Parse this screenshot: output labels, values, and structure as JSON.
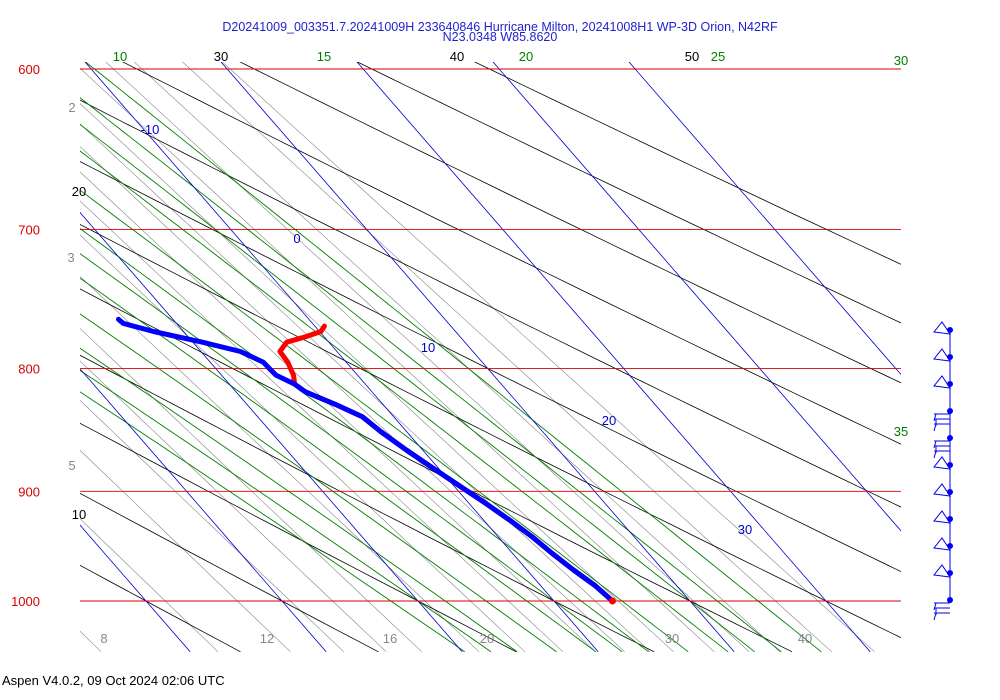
{
  "header": {
    "title_line1": "D20241009_003351.7.20241009H 233640846 Hurricane Milton, 20241008H1 WP-3D Orion, N42RF",
    "title_line2": "N23.0348 W85.8620"
  },
  "footer": {
    "version_text": "Aspen V4.0.2, 09 Oct 2024  02:06 UTC"
  },
  "colors": {
    "isobar": "#d90000",
    "isotherm": "#0000cc",
    "dry_adiabat": "#000000",
    "moist_adiabat": "#008000",
    "mixing_ratio": "#888888",
    "temperature": "#ff0000",
    "dewpoint": "#0000ff",
    "wind_barb": "#0000ee"
  },
  "chart_data": {
    "type": "line",
    "subtype": "skew-t log-p diagram",
    "pressure_range_hPa": [
      1050,
      600
    ],
    "pressure_labels": [
      {
        "value": 600,
        "text": "600"
      },
      {
        "value": 700,
        "text": "700"
      },
      {
        "value": 800,
        "text": "800"
      },
      {
        "value": 900,
        "text": "900"
      },
      {
        "value": 1000,
        "text": "1000"
      }
    ],
    "isotherm_labels": [
      "-10",
      "0",
      "10",
      "20",
      "30"
    ],
    "bottom_axis_labels": [
      "8",
      "12",
      "16",
      "20",
      "30",
      "40"
    ],
    "dry_adiabat_labels": [
      "10",
      "20",
      "30",
      "40",
      "50"
    ],
    "moist_adiabat_labels": [
      "10",
      "15",
      "20",
      "25",
      "30",
      "35"
    ],
    "mixing_ratio_labels": [
      "2",
      "3",
      "5"
    ],
    "series": [
      {
        "name": "",
        "kind": "temperature",
        "points": [
          {
            "p": 1000,
            "t": 24.3
          },
          {
            "p": 985,
            "t": 24.0
          },
          {
            "p": 970,
            "t": 23.4
          },
          {
            "p": 955,
            "t": 22.9
          },
          {
            "p": 940,
            "t": 22.5
          },
          {
            "p": 925,
            "t": 21.9
          },
          {
            "p": 910,
            "t": 21.2
          },
          {
            "p": 895,
            "t": 20.4
          },
          {
            "p": 880,
            "t": 19.6
          },
          {
            "p": 865,
            "t": 18.8
          },
          {
            "p": 850,
            "t": 18.1
          },
          {
            "p": 838,
            "t": 17.7
          },
          {
            "p": 828,
            "t": 16.5
          },
          {
            "p": 818,
            "t": 15.1
          },
          {
            "p": 812,
            "t": 14.8
          },
          {
            "p": 805,
            "t": 15.3
          },
          {
            "p": 795,
            "t": 15.7
          },
          {
            "p": 787,
            "t": 15.8
          },
          {
            "p": 780,
            "t": 16.9
          },
          {
            "p": 776,
            "t": 18.6
          },
          {
            "p": 772,
            "t": 20.1
          },
          {
            "p": 768,
            "t": 20.7
          }
        ]
      },
      {
        "name": "",
        "kind": "dewpoint",
        "points": [
          {
            "p": 1000,
            "t": 24.3
          },
          {
            "p": 985,
            "t": 24.0
          },
          {
            "p": 970,
            "t": 23.4
          },
          {
            "p": 955,
            "t": 22.9
          },
          {
            "p": 940,
            "t": 22.5
          },
          {
            "p": 925,
            "t": 21.9
          },
          {
            "p": 910,
            "t": 21.2
          },
          {
            "p": 895,
            "t": 20.4
          },
          {
            "p": 880,
            "t": 19.6
          },
          {
            "p": 865,
            "t": 18.8
          },
          {
            "p": 850,
            "t": 18.1
          },
          {
            "p": 838,
            "t": 17.7
          },
          {
            "p": 828,
            "t": 16.5
          },
          {
            "p": 818,
            "t": 15.1
          },
          {
            "p": 812,
            "t": 14.8
          },
          {
            "p": 805,
            "t": 14.0
          },
          {
            "p": 795,
            "t": 13.9
          },
          {
            "p": 787,
            "t": 12.9
          },
          {
            "p": 780,
            "t": 10.7
          },
          {
            "p": 772,
            "t": 7.8
          },
          {
            "p": 766,
            "t": 6.1
          },
          {
            "p": 763,
            "t": 6.0
          }
        ]
      }
    ],
    "wind_barbs": [
      {
        "p": 765,
        "type": "half-barb flag"
      },
      {
        "p": 790,
        "type": "half-barb flag"
      },
      {
        "p": 815,
        "type": "half-barb flag"
      },
      {
        "p": 840,
        "type": "full barbs"
      },
      {
        "p": 865,
        "type": "full barbs"
      },
      {
        "p": 890,
        "type": "half-barb flag"
      },
      {
        "p": 915,
        "type": "half-barb flag"
      },
      {
        "p": 940,
        "type": "half-barb flag"
      },
      {
        "p": 965,
        "type": "half-barb flag"
      },
      {
        "p": 990,
        "type": "half-barb flag"
      },
      {
        "p": 1000,
        "type": "full barbs"
      }
    ],
    "grid": true,
    "legend": "none"
  }
}
